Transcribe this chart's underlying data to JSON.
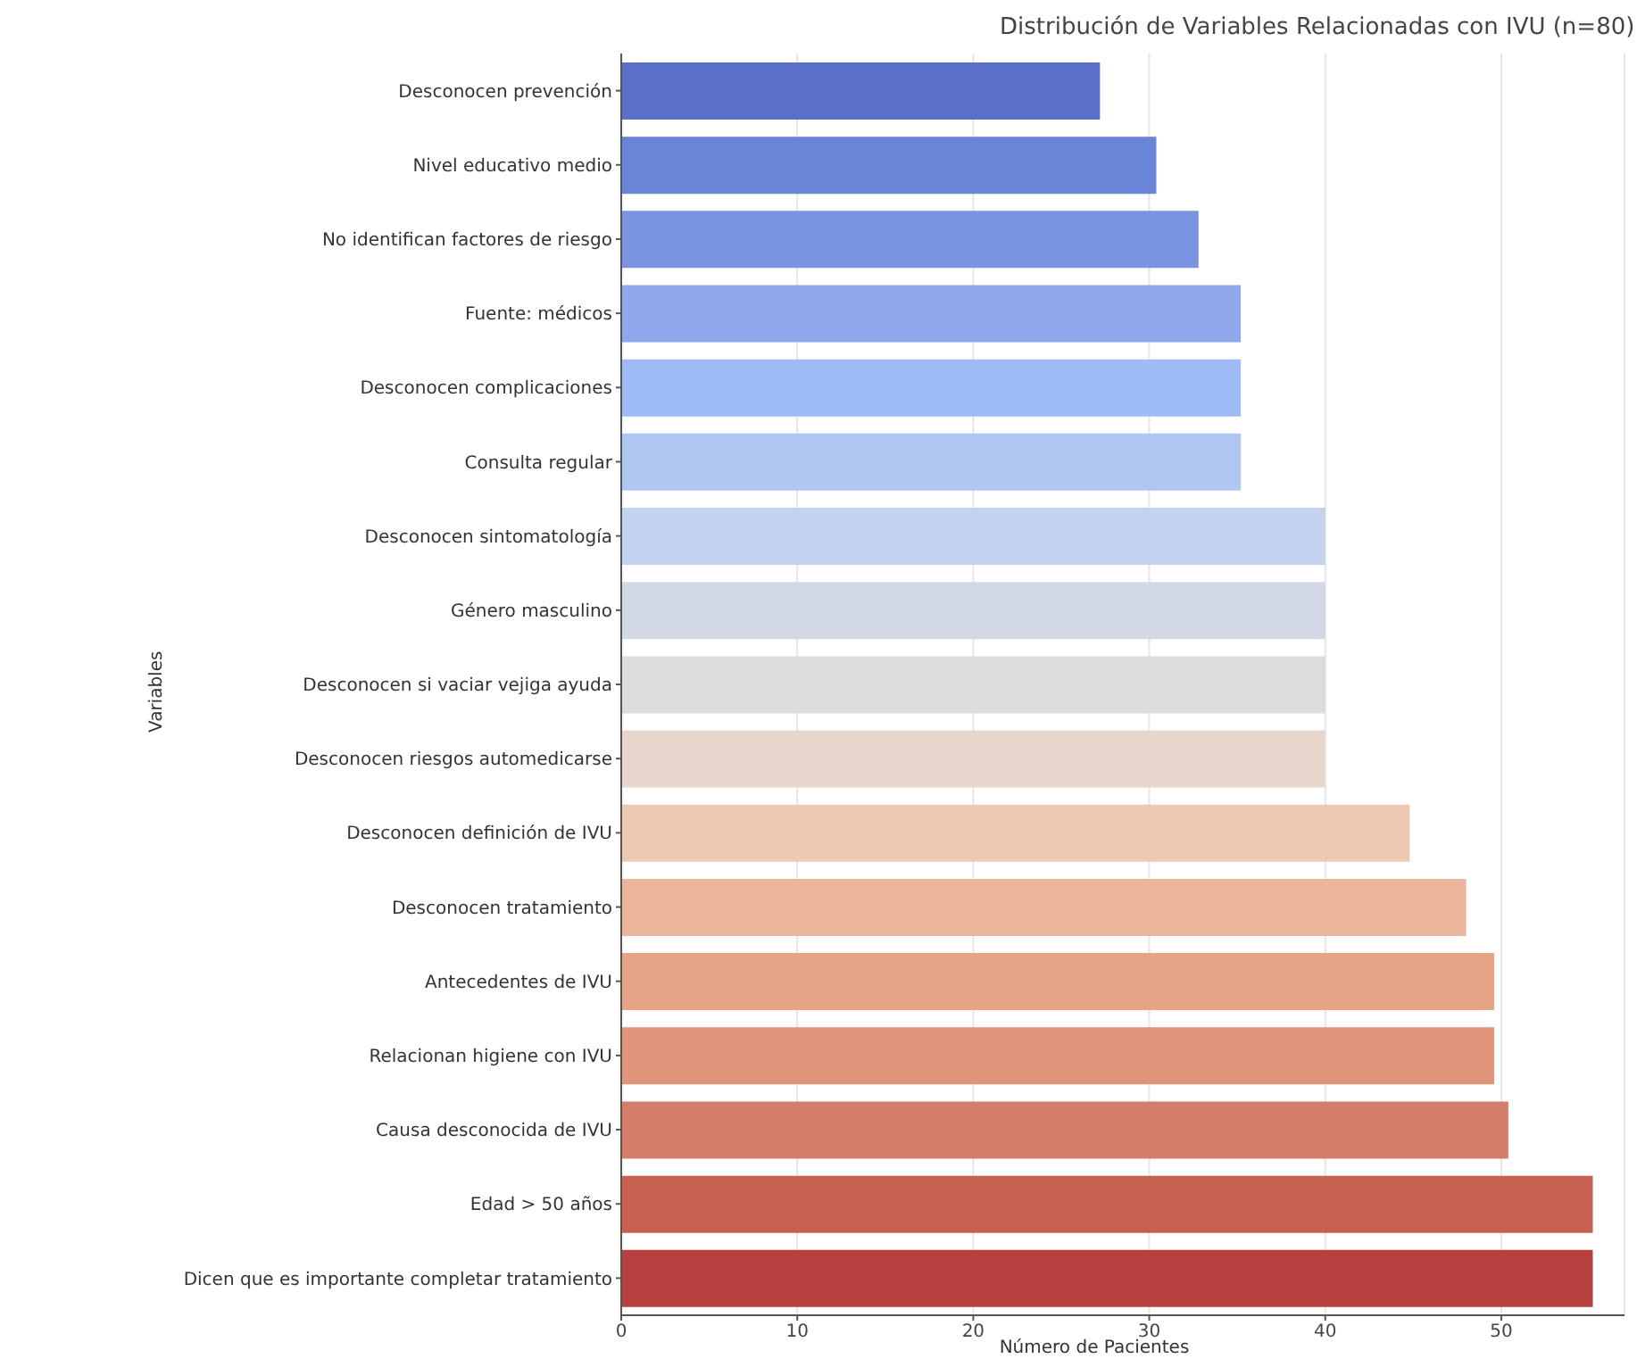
{
  "chart_data": {
    "type": "bar",
    "orientation": "horizontal",
    "title": "Distribución de Variables Relacionadas con IVU (n=80)",
    "xlabel": "Número de Pacientes",
    "ylabel": "Variables",
    "categories": [
      "Desconocen prevención",
      "Nivel educativo medio",
      "No identifican factores de riesgo",
      "Fuente: médicos",
      "Desconocen complicaciones",
      "Consulta regular",
      "Desconocen sintomatología",
      "Género masculino",
      "Desconocen si vaciar vejiga ayuda",
      "Desconocen riesgos automedicarse",
      "Desconocen definición de IVU",
      "Desconocen tratamiento",
      "Antecedentes de IVU",
      "Relacionan higiene con IVU",
      "Causa desconocida de IVU",
      "Edad > 50 años",
      "Dicen que es importante completar tratamiento"
    ],
    "values": [
      27.2,
      30.4,
      32.8,
      35.2,
      35.2,
      35.2,
      40,
      40,
      40,
      40,
      44.8,
      48,
      49.6,
      49.6,
      50.4,
      55.2,
      55.2
    ],
    "colors": [
      "#5a6fc7",
      "#6a84d7",
      "#7b94df",
      "#8ea8eb",
      "#9ebbf5",
      "#afc6f2",
      "#c3d2ef",
      "#d3d8e6",
      "#dedcdb",
      "#e8d6cc",
      "#eec8b3",
      "#ebb59c",
      "#e6a486",
      "#e09479",
      "#d57d68",
      "#c8604f",
      "#b8413f"
    ],
    "xlim": [
      0,
      57
    ],
    "xticks": [
      0,
      10,
      20,
      30,
      40,
      50
    ],
    "grid": "x"
  }
}
